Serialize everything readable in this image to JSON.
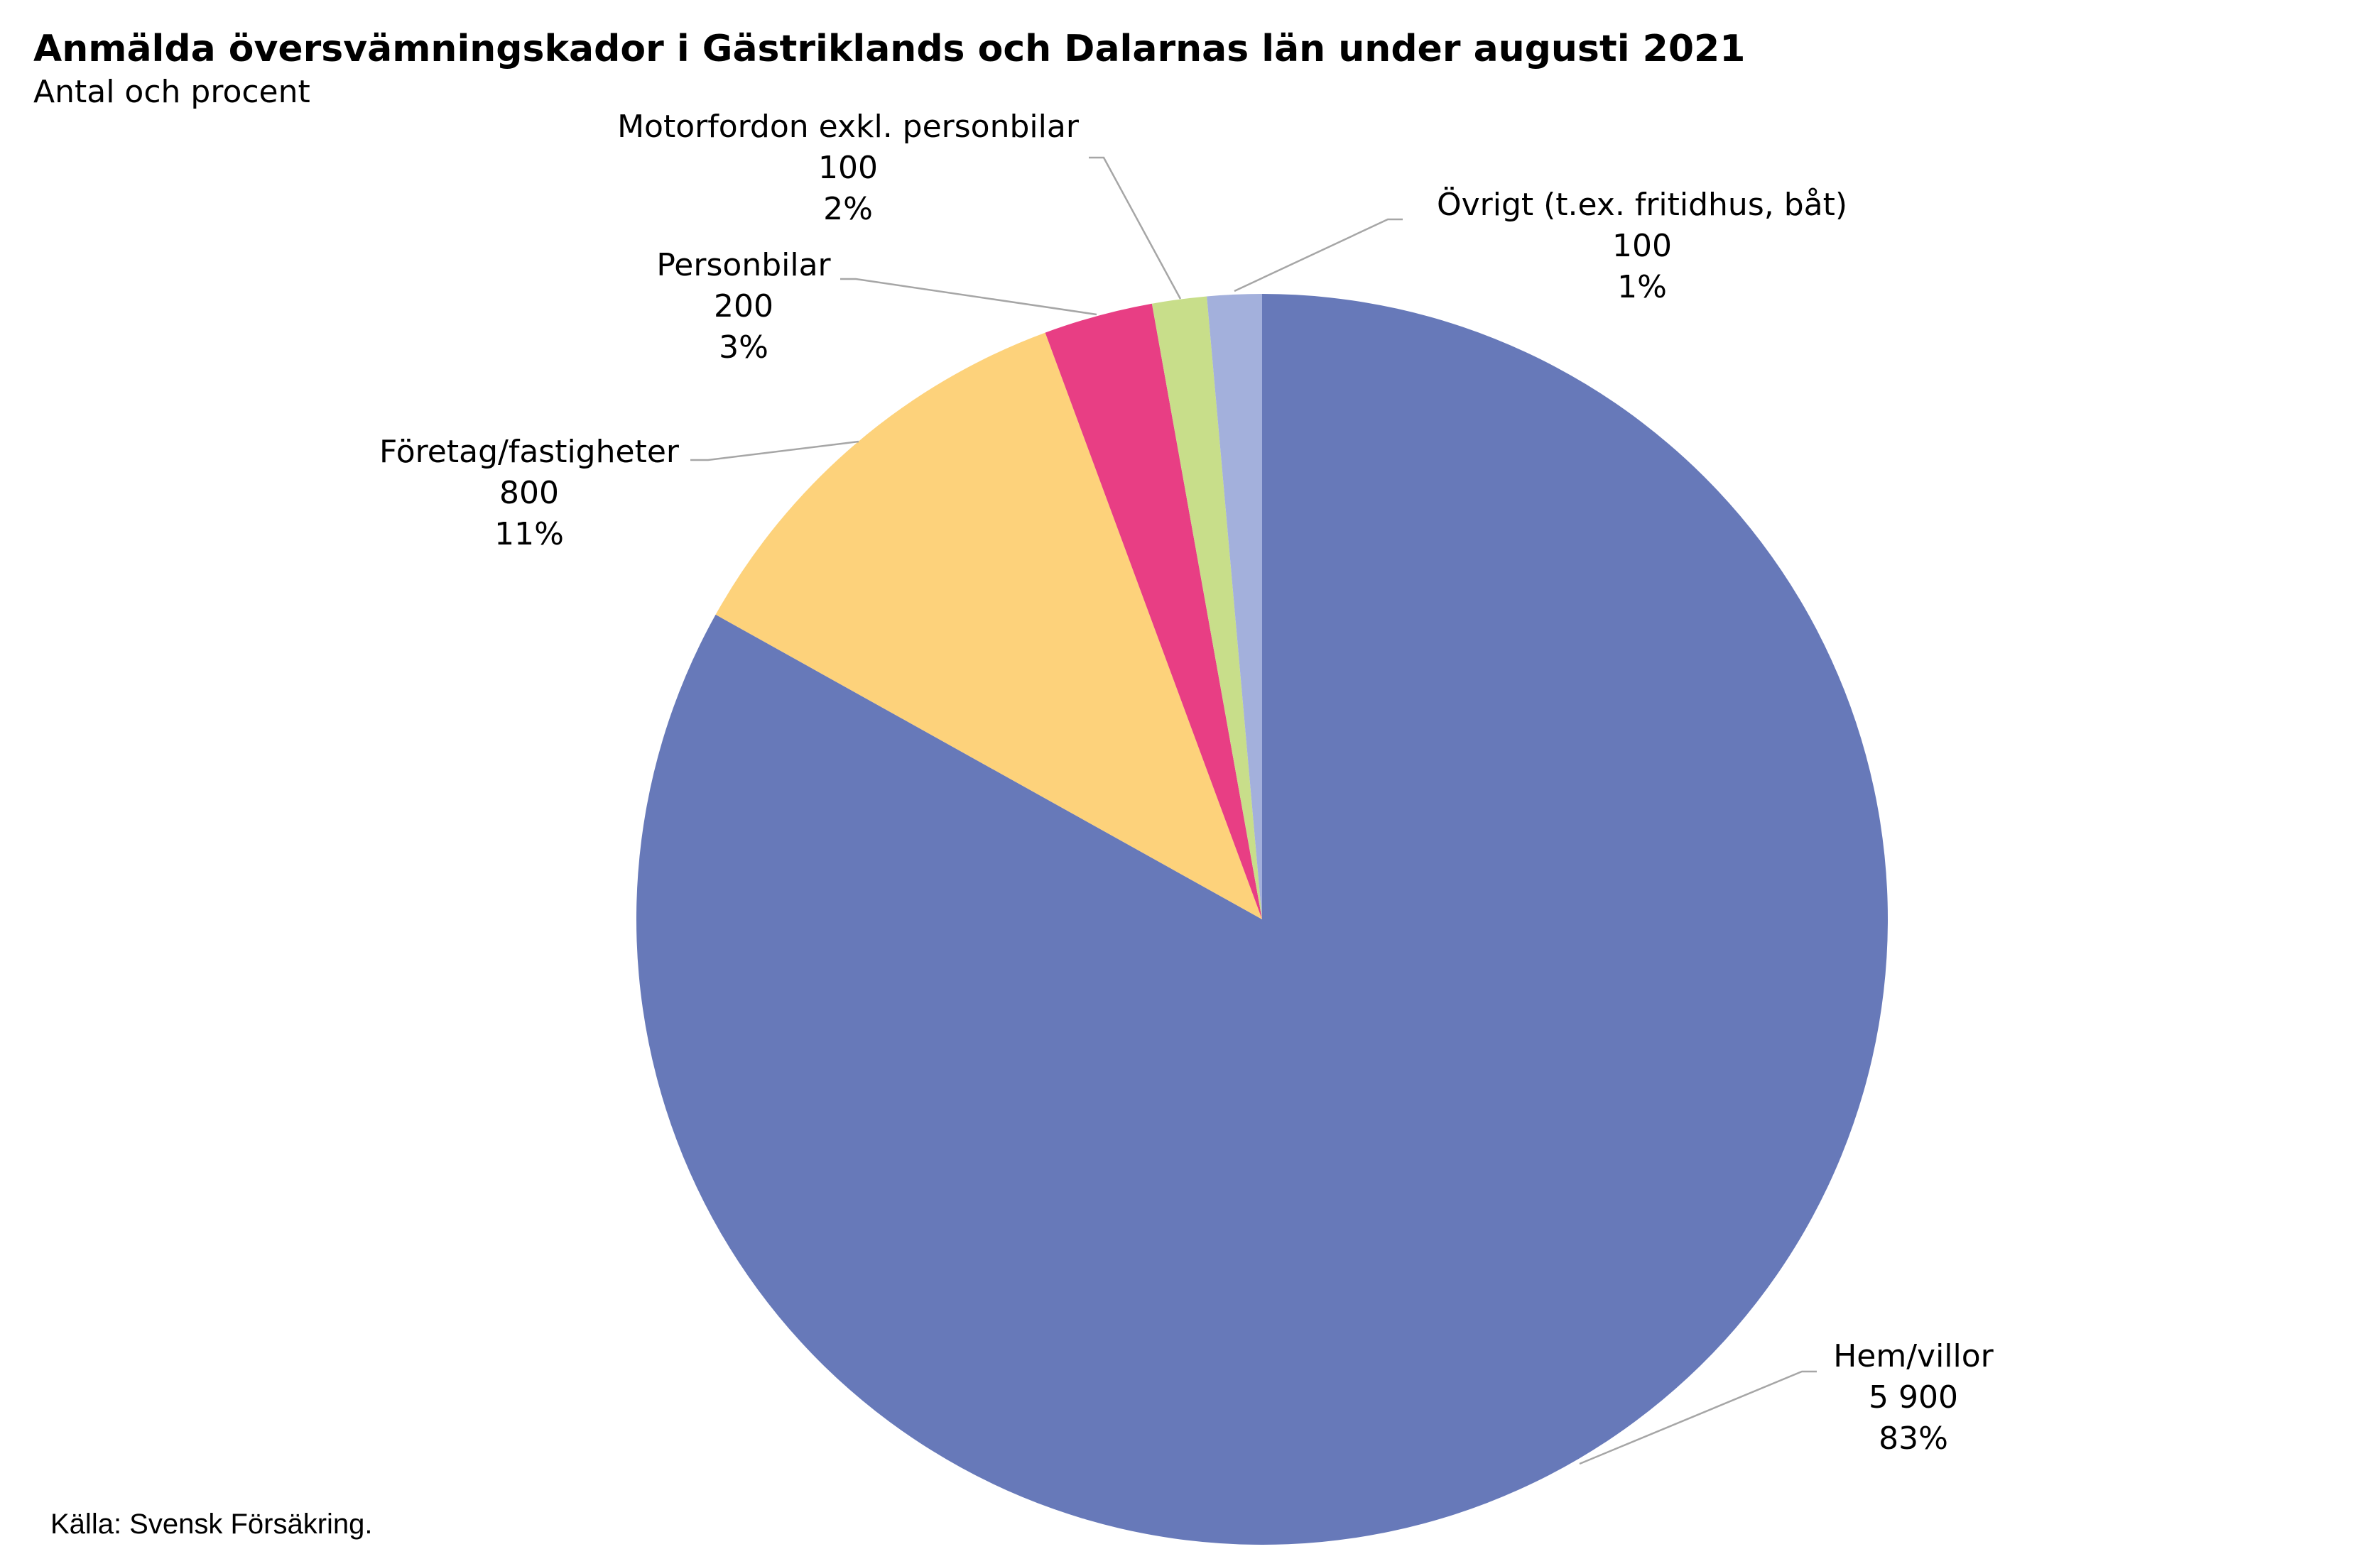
{
  "chart_data": {
    "type": "pie",
    "title": "Anmälda översvämningskador i Gästriklands och Dalarnas län under augusti 2021",
    "subtitle": "Antal och procent",
    "source": "Källa: Svensk Försäkring.",
    "categories": [
      "Hem/villor",
      "Företag/fastigheter",
      "Personbilar",
      "Motorfordon exkl. personbilar",
      "Övrigt (t.ex. fritidhus, båt)"
    ],
    "values": [
      5900,
      800,
      200,
      100,
      100
    ],
    "value_labels": [
      "5 900",
      "800",
      "200",
      "100",
      "100"
    ],
    "percents": [
      83,
      11,
      3,
      2,
      1
    ],
    "percent_labels": [
      "83%",
      "11%",
      "3%",
      "2%",
      "1%"
    ],
    "colors": [
      "#6779b9",
      "#fdd27b",
      "#e83e84",
      "#c8de8a",
      "#a3b0dc"
    ]
  }
}
